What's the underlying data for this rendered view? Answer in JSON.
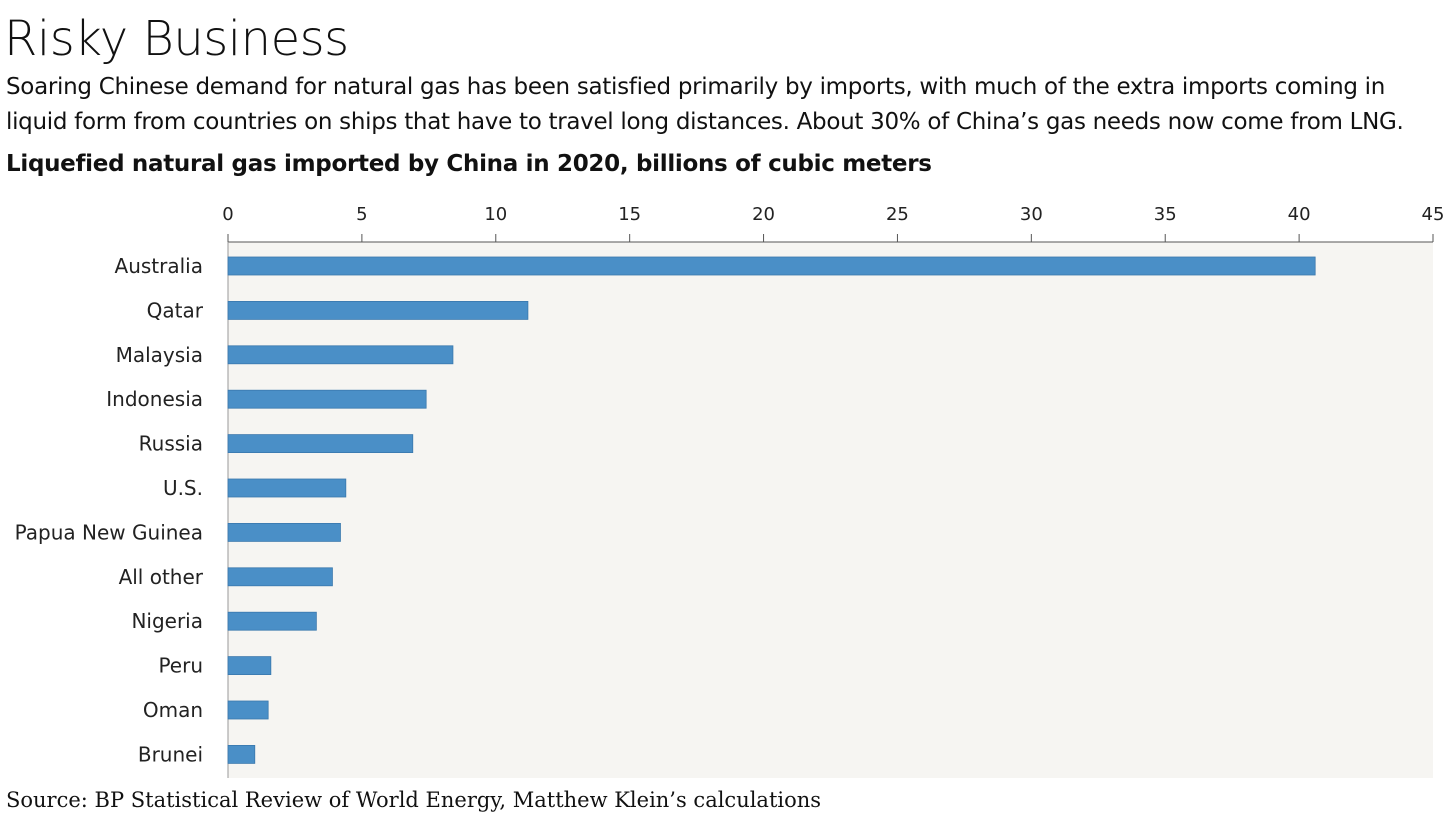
{
  "header": {
    "title": "Risky Business",
    "subtitle": "Soaring Chinese demand for natural gas has been satisfied primarily by imports, with much of the extra imports coming in liquid form from countries on ships that have to travel long distances. About 30% of China’s gas needs now come from LNG."
  },
  "footer": {
    "source": "Source: BP Statistical Review of World Energy, Matthew Klein’s calculations"
  },
  "chart_data": {
    "type": "bar",
    "orientation": "horizontal",
    "title": "Liquefied natural gas imported by China in 2020, billions of cubic meters",
    "categories": [
      "Australia",
      "Qatar",
      "Malaysia",
      "Indonesia",
      "Russia",
      "U.S.",
      "Papua New Guinea",
      "All other",
      "Nigeria",
      "Peru",
      "Oman",
      "Brunei"
    ],
    "values": [
      40.6,
      11.2,
      8.4,
      7.4,
      6.9,
      4.4,
      4.2,
      3.9,
      3.3,
      1.6,
      1.5,
      1.0
    ],
    "xlim": [
      0,
      45
    ],
    "xticks": [
      0,
      5,
      10,
      15,
      20,
      25,
      30,
      35,
      40,
      45
    ],
    "x_axis_position": "top",
    "bar_color": "#4a8fc7",
    "plot_background": "#f6f5f2",
    "grid": false
  }
}
